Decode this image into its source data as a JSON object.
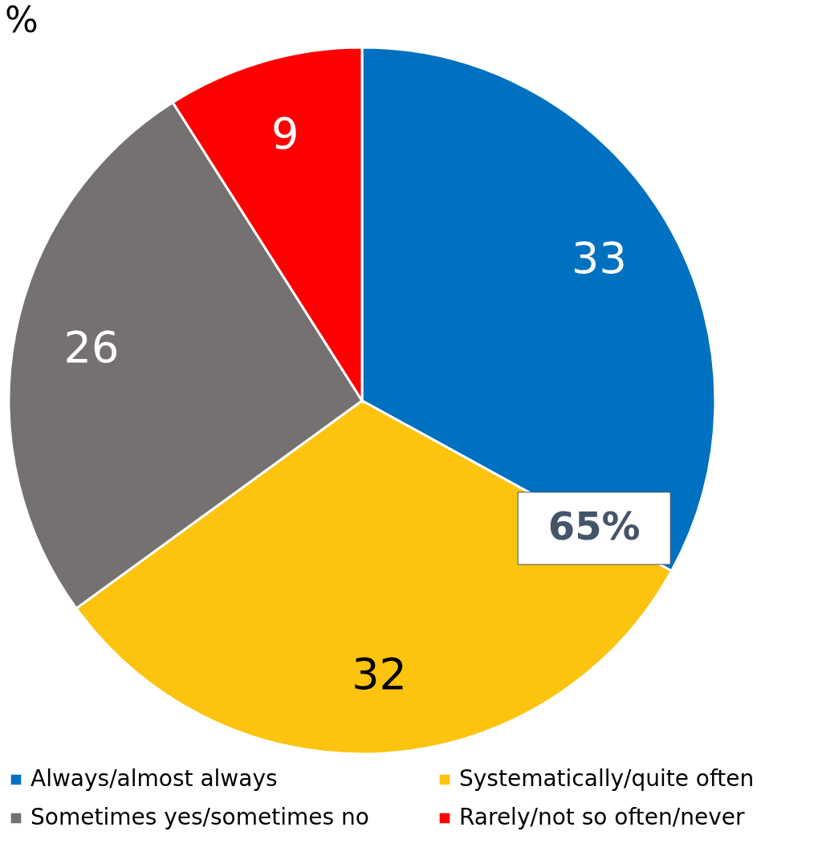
{
  "chart_data": {
    "type": "pie",
    "title": "%",
    "categories": [
      "Always/almost always",
      "Systematically/quite often",
      "Sometimes yes/sometimes no",
      "Rarely/not so often/never"
    ],
    "values": [
      33,
      32,
      26,
      9
    ],
    "colors": [
      "#0070c0",
      "#fcc30f",
      "#767171",
      "#ff0000"
    ],
    "data_labels": true,
    "legend": "bottom",
    "annotations": [
      "65%"
    ]
  }
}
